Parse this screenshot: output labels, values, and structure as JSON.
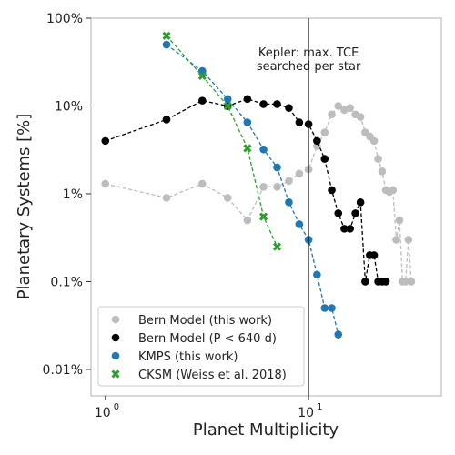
{
  "chart_data": {
    "type": "scatter",
    "xlabel": "Planet Multiplicity",
    "ylabel": "Planetary Systems [%]",
    "xscale": "log",
    "yscale": "log",
    "xlim": [
      0.85,
      45
    ],
    "ylim": [
      0.005,
      100
    ],
    "x_ticks": [
      {
        "value": 1,
        "label": "10",
        "sup": "0"
      },
      {
        "value": 10,
        "label": "10",
        "sup": "1"
      }
    ],
    "y_ticks": [
      {
        "value": 100,
        "label": "100%"
      },
      {
        "value": 10,
        "label": "10%"
      },
      {
        "value": 1,
        "label": "1%"
      },
      {
        "value": 0.1,
        "label": "0.1%"
      },
      {
        "value": 0.01,
        "label": "0.01%"
      }
    ],
    "grid": false,
    "legend_position": "lower-left",
    "annotation": {
      "x": 10,
      "lines": [
        "Kepler: max. TCE",
        "searched per star"
      ]
    },
    "series": [
      {
        "name": "Bern Model (this work)",
        "color": "#bdbdbd",
        "marker": "circle",
        "x": [
          1,
          2,
          3,
          4,
          5,
          6,
          7,
          8,
          9,
          10,
          11,
          12,
          13,
          14,
          15,
          16,
          17,
          18,
          19,
          20,
          21,
          22,
          23,
          24,
          25,
          26,
          27,
          28,
          29,
          30,
          31,
          32
        ],
        "y": [
          1.3,
          0.9,
          1.3,
          0.9,
          0.5,
          1.2,
          1.2,
          1.4,
          1.7,
          1.9,
          3.5,
          5.0,
          8.0,
          10.0,
          9.0,
          9.5,
          8.0,
          7.5,
          5.0,
          4.5,
          4.0,
          2.5,
          1.8,
          1.1,
          1.05,
          1.1,
          0.3,
          0.5,
          0.1,
          0.1,
          0.3,
          0.1
        ]
      },
      {
        "name": "Bern Model (P < 640 d)",
        "color": "#000000",
        "marker": "circle",
        "x": [
          1,
          2,
          3,
          4,
          5,
          6,
          7,
          8,
          9,
          10,
          11,
          12,
          13,
          14,
          15,
          16,
          17,
          18,
          19,
          20,
          21,
          22,
          23,
          24
        ],
        "y": [
          4.0,
          7.0,
          11.5,
          10.0,
          12.0,
          10.5,
          10.5,
          9.5,
          6.5,
          6.2,
          4.0,
          2.5,
          1.1,
          0.6,
          0.4,
          0.4,
          0.6,
          0.8,
          0.1,
          0.2,
          0.2,
          0.1,
          0.1,
          0.1
        ]
      },
      {
        "name": "KMPS (this work)",
        "color": "#1f77b4",
        "marker": "circle",
        "x": [
          2,
          3,
          4,
          5,
          6,
          7,
          8,
          9,
          10,
          11,
          12,
          13,
          14
        ],
        "y": [
          50.0,
          25.0,
          12.0,
          6.5,
          3.2,
          2.0,
          0.8,
          0.45,
          0.3,
          0.12,
          0.05,
          0.05,
          0.025
        ]
      },
      {
        "name": "CKSM (Weiss et al. 2018)",
        "color": "#2ca02c",
        "marker": "x",
        "x": [
          2,
          3,
          4,
          5,
          6,
          7
        ],
        "y": [
          63.0,
          22.0,
          10.0,
          3.3,
          0.55,
          0.25
        ]
      }
    ]
  }
}
